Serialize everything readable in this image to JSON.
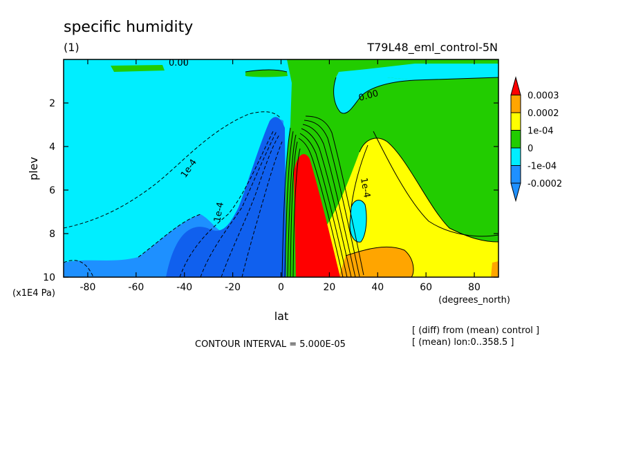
{
  "chart_data": {
    "type": "heatmap",
    "title": "specific humidity",
    "subtitle": "(1)",
    "run_label": "T79L48_eml_control-5N",
    "xlabel": "lat",
    "x_units": "(degrees_north)",
    "ylabel": "plev",
    "y_units": "(x1E4 Pa)",
    "xlim": [
      -90,
      90
    ],
    "ylim": [
      0,
      10
    ],
    "y_inverted": true,
    "x_ticks": [
      -80,
      -60,
      -40,
      -20,
      0,
      20,
      40,
      60,
      80
    ],
    "y_ticks": [
      2,
      4,
      6,
      8,
      10
    ],
    "contour_interval_text": "CONTOUR INTERVAL = 5.000E-05",
    "note_lines": [
      "[ (diff) from (mean) control ]",
      "[ (mean) lon:0..358.5 ]"
    ],
    "colorbar": [
      {
        "label": "0.0003",
        "color": "#ff0000"
      },
      {
        "label": "0.0002",
        "color": "#ffa500"
      },
      {
        "label": "1e-04",
        "color": "#ffff00"
      },
      {
        "label": "0",
        "color": "#22cc00"
      },
      {
        "label": "-1e-04",
        "color": "#00eeff"
      },
      {
        "label": "-0.0002",
        "color": "#1e90ff"
      }
    ],
    "fill_colors": {
      "above_0.0003": "#ff0000",
      "0.0002_to_0.0003": "#ffa500",
      "1e-04_to_0.0002": "#ffff00",
      "0_to_1e-04": "#22cc00",
      "-1e-04_to_0": "#00eeff",
      "-0.0002_to_-1e-04": "#1e90ff",
      "below_-0.0002": "#1060ee"
    },
    "contour_labels": [
      "0.00",
      "0.00",
      "1e-4",
      "1e-4",
      "1e-4"
    ],
    "regions": [
      {
        "name": "southern-hemisphere-negative",
        "fill": "#00eeff"
      },
      {
        "name": "northern-upper-positive",
        "fill": "#22cc00"
      },
      {
        "name": "equatorial-negative-core",
        "fill": "#1060ee"
      },
      {
        "name": "tropical-positive-core",
        "fill": "#ff0000"
      },
      {
        "name": "subtropical-yellow-lobe",
        "fill": "#ffff00"
      },
      {
        "name": "subtropical-orange-patch",
        "fill": "#ffa500"
      }
    ]
  }
}
